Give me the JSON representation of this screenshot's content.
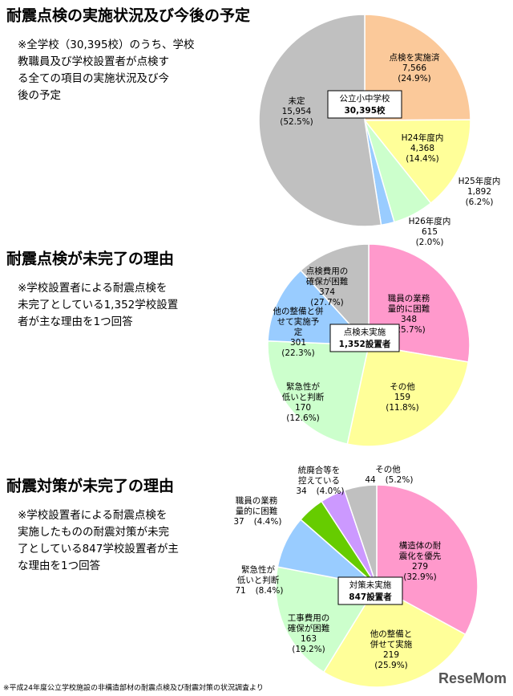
{
  "chart_data": [
    {
      "type": "pie",
      "title": "耐震点検の実施状況及び今後の予定",
      "note": [
        "※全学校（30,395校）のうち、学校",
        "教職員及び学校設置者が点検す",
        "る全ての項目の実施状況及び今",
        "後の予定"
      ],
      "center_label": [
        "公立小中学校",
        "30,395校"
      ],
      "categories": [
        [
          "点検を実施済"
        ],
        [
          "H24年度内"
        ],
        [
          "H25年度内"
        ],
        [
          "H26年度内"
        ],
        [
          "未定"
        ]
      ],
      "values": [
        7566,
        4368,
        1892,
        615,
        15954
      ],
      "value_labels": [
        "7,566",
        "4,368",
        "1,892",
        "615",
        "15,954"
      ],
      "percent_labels": [
        "(24.9%)",
        "(14.4%)",
        "(6.2%)",
        "(2.0%)",
        "(52.5%)"
      ],
      "colors": [
        "#fbc99a",
        "#ffff99",
        "#ccffcc",
        "#99ccff",
        "#c0c0c0"
      ]
    },
    {
      "type": "pie",
      "title": "耐震点検が未完了の理由",
      "note": [
        "※学校設置者による耐震点検を",
        "未完了としている1,352学校設置",
        "者が主な理由を1つ回答"
      ],
      "center_label": [
        "点検未実施",
        "1,352設置者"
      ],
      "categories": [
        [
          "点検費用の",
          "確保が困難"
        ],
        [
          "職員の業務",
          "量的に困難"
        ],
        [
          "他の整備と併",
          "せて実施予",
          "定"
        ],
        [
          "緊急性が",
          "低いと判断"
        ],
        [
          "その他"
        ]
      ],
      "values": [
        374,
        348,
        301,
        170,
        159
      ],
      "percent_labels": [
        "(27.7%)",
        "(25.7%)",
        "(22.3%)",
        "(12.6%)",
        "(11.8%)"
      ],
      "colors": [
        "#ff99cc",
        "#ffff99",
        "#ccffcc",
        "#99ccff",
        "#c0c0c0"
      ]
    },
    {
      "type": "pie",
      "title": "耐震対策が未完了の理由",
      "note": [
        "※学校設置者による耐震点検を",
        "実施したものの耐震対策が未完",
        "了としている847学校設置者が主",
        "な理由を1つ回答"
      ],
      "center_label": [
        "対策未実施",
        "847設置者"
      ],
      "categories": [
        [
          "構造体の耐",
          "震化を優先"
        ],
        [
          "他の整備と",
          "併せて実施"
        ],
        [
          "工事費用の",
          "確保が困難"
        ],
        [
          "緊急性が",
          "低いと判断"
        ],
        [
          "職員の業務",
          "量的に困難"
        ],
        [
          "統廃合等を",
          "控えている"
        ],
        [
          "その他"
        ]
      ],
      "values": [
        279,
        219,
        163,
        71,
        37,
        34,
        44
      ],
      "percent_labels": [
        "(32.9%)",
        "(25.9%)",
        "(19.2%)",
        "(8.4%)",
        "(4.4%)",
        "(4.0%)",
        "(5.2%)"
      ],
      "colors": [
        "#ff99cc",
        "#ffff99",
        "#ccffcc",
        "#99ccff",
        "#66cc00",
        "#cc99ff",
        "#c0c0c0"
      ]
    }
  ],
  "footer": "※平成24年度公立学校施設の非構造部材の耐震点検及び耐震対策の状況調査より",
  "logo": "ReseMom"
}
